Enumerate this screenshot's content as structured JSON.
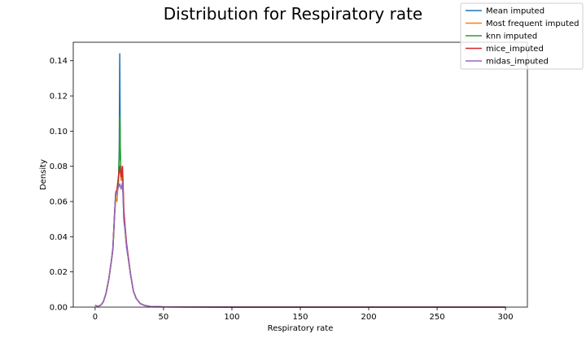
{
  "chart_data": {
    "type": "line",
    "title": "Distribution for Respiratory rate",
    "xlabel": "Respiratory rate",
    "ylabel": "Density",
    "xlim": [
      -16,
      316
    ],
    "ylim": [
      0,
      0.1505
    ],
    "xticks": [
      0,
      50,
      100,
      150,
      200,
      250,
      300
    ],
    "yticks": [
      0.0,
      0.02,
      0.04,
      0.06,
      0.08,
      0.1,
      0.12,
      0.14
    ],
    "ytick_labels": [
      "0.00",
      "0.02",
      "0.04",
      "0.06",
      "0.08",
      "0.10",
      "0.12",
      "0.14"
    ],
    "grid": false,
    "legend_position": "top-right",
    "series": [
      {
        "name": "Mean imputed",
        "color": "#1f77b4",
        "points": [
          [
            0,
            0.001
          ],
          [
            2,
            0.0005
          ],
          [
            4,
            0.001
          ],
          [
            6,
            0.003
          ],
          [
            8,
            0.008
          ],
          [
            10,
            0.016
          ],
          [
            12,
            0.027
          ],
          [
            13,
            0.033
          ],
          [
            14,
            0.05
          ],
          [
            15,
            0.063
          ],
          [
            16,
            0.066
          ],
          [
            17,
            0.07
          ],
          [
            17.6,
            0.09
          ],
          [
            18,
            0.144
          ],
          [
            18.4,
            0.09
          ],
          [
            19,
            0.072
          ],
          [
            20,
            0.075
          ],
          [
            21,
            0.05
          ],
          [
            22,
            0.043
          ],
          [
            23,
            0.034
          ],
          [
            24,
            0.029
          ],
          [
            26,
            0.018
          ],
          [
            28,
            0.009
          ],
          [
            30,
            0.005
          ],
          [
            33,
            0.002
          ],
          [
            36,
            0.001
          ],
          [
            40,
            0.0004
          ],
          [
            50,
            0.0001
          ],
          [
            100,
            0
          ],
          [
            200,
            0
          ],
          [
            300,
            0
          ]
        ]
      },
      {
        "name": "Most frequent imputed",
        "color": "#ff7f0e",
        "points": [
          [
            0,
            0.001
          ],
          [
            2,
            0.0005
          ],
          [
            4,
            0.001
          ],
          [
            6,
            0.003
          ],
          [
            8,
            0.008
          ],
          [
            10,
            0.016
          ],
          [
            12,
            0.027
          ],
          [
            13,
            0.033
          ],
          [
            14,
            0.048
          ],
          [
            15,
            0.062
          ],
          [
            16,
            0.06
          ],
          [
            17,
            0.073
          ],
          [
            18,
            0.08
          ],
          [
            19,
            0.072
          ],
          [
            20,
            0.079
          ],
          [
            21,
            0.052
          ],
          [
            22,
            0.044
          ],
          [
            23,
            0.035
          ],
          [
            24,
            0.03
          ],
          [
            26,
            0.018
          ],
          [
            28,
            0.009
          ],
          [
            30,
            0.005
          ],
          [
            33,
            0.002
          ],
          [
            36,
            0.001
          ],
          [
            40,
            0.0004
          ],
          [
            50,
            0.0001
          ],
          [
            100,
            0
          ],
          [
            200,
            0
          ],
          [
            300,
            0
          ]
        ]
      },
      {
        "name": "knn imputed",
        "color": "#2ca02c",
        "points": [
          [
            0,
            0.001
          ],
          [
            2,
            0.0005
          ],
          [
            4,
            0.001
          ],
          [
            6,
            0.003
          ],
          [
            8,
            0.008
          ],
          [
            10,
            0.016
          ],
          [
            12,
            0.027
          ],
          [
            13,
            0.033
          ],
          [
            14,
            0.05
          ],
          [
            15,
            0.064
          ],
          [
            16,
            0.066
          ],
          [
            17,
            0.072
          ],
          [
            17.6,
            0.085
          ],
          [
            18,
            0.109
          ],
          [
            18.5,
            0.085
          ],
          [
            19,
            0.074
          ],
          [
            20,
            0.075
          ],
          [
            21,
            0.05
          ],
          [
            22,
            0.043
          ],
          [
            23,
            0.034
          ],
          [
            24,
            0.029
          ],
          [
            26,
            0.018
          ],
          [
            28,
            0.009
          ],
          [
            30,
            0.005
          ],
          [
            33,
            0.002
          ],
          [
            36,
            0.001
          ],
          [
            40,
            0.0004
          ],
          [
            50,
            0.0001
          ],
          [
            100,
            0
          ],
          [
            200,
            0
          ],
          [
            300,
            0
          ]
        ]
      },
      {
        "name": "mice_imputed",
        "color": "#d62728",
        "points": [
          [
            0,
            0.001
          ],
          [
            2,
            0.0005
          ],
          [
            4,
            0.001
          ],
          [
            6,
            0.003
          ],
          [
            8,
            0.008
          ],
          [
            10,
            0.016
          ],
          [
            12,
            0.027
          ],
          [
            13,
            0.034
          ],
          [
            14,
            0.05
          ],
          [
            15,
            0.065
          ],
          [
            16,
            0.067
          ],
          [
            17,
            0.074
          ],
          [
            18,
            0.08
          ],
          [
            19,
            0.074
          ],
          [
            20,
            0.08
          ],
          [
            21,
            0.055
          ],
          [
            22,
            0.045
          ],
          [
            23,
            0.036
          ],
          [
            24,
            0.03
          ],
          [
            26,
            0.018
          ],
          [
            28,
            0.009
          ],
          [
            30,
            0.005
          ],
          [
            33,
            0.002
          ],
          [
            36,
            0.001
          ],
          [
            40,
            0.0004
          ],
          [
            50,
            0.0001
          ],
          [
            100,
            0
          ],
          [
            200,
            0
          ],
          [
            300,
            0
          ]
        ]
      },
      {
        "name": "midas_imputed",
        "color": "#9467bd",
        "points": [
          [
            0,
            0.001
          ],
          [
            2,
            0.0005
          ],
          [
            4,
            0.001
          ],
          [
            6,
            0.003
          ],
          [
            8,
            0.008
          ],
          [
            10,
            0.016
          ],
          [
            12,
            0.027
          ],
          [
            13,
            0.034
          ],
          [
            14,
            0.05
          ],
          [
            15,
            0.064
          ],
          [
            16,
            0.066
          ],
          [
            17,
            0.068
          ],
          [
            18,
            0.07
          ],
          [
            19,
            0.067
          ],
          [
            20,
            0.071
          ],
          [
            21,
            0.05
          ],
          [
            22,
            0.043
          ],
          [
            23,
            0.034
          ],
          [
            24,
            0.029
          ],
          [
            26,
            0.018
          ],
          [
            28,
            0.009
          ],
          [
            30,
            0.005
          ],
          [
            33,
            0.002
          ],
          [
            36,
            0.001
          ],
          [
            40,
            0.0004
          ],
          [
            50,
            0.0001
          ],
          [
            100,
            0
          ],
          [
            200,
            0
          ],
          [
            300,
            0
          ]
        ]
      }
    ]
  }
}
